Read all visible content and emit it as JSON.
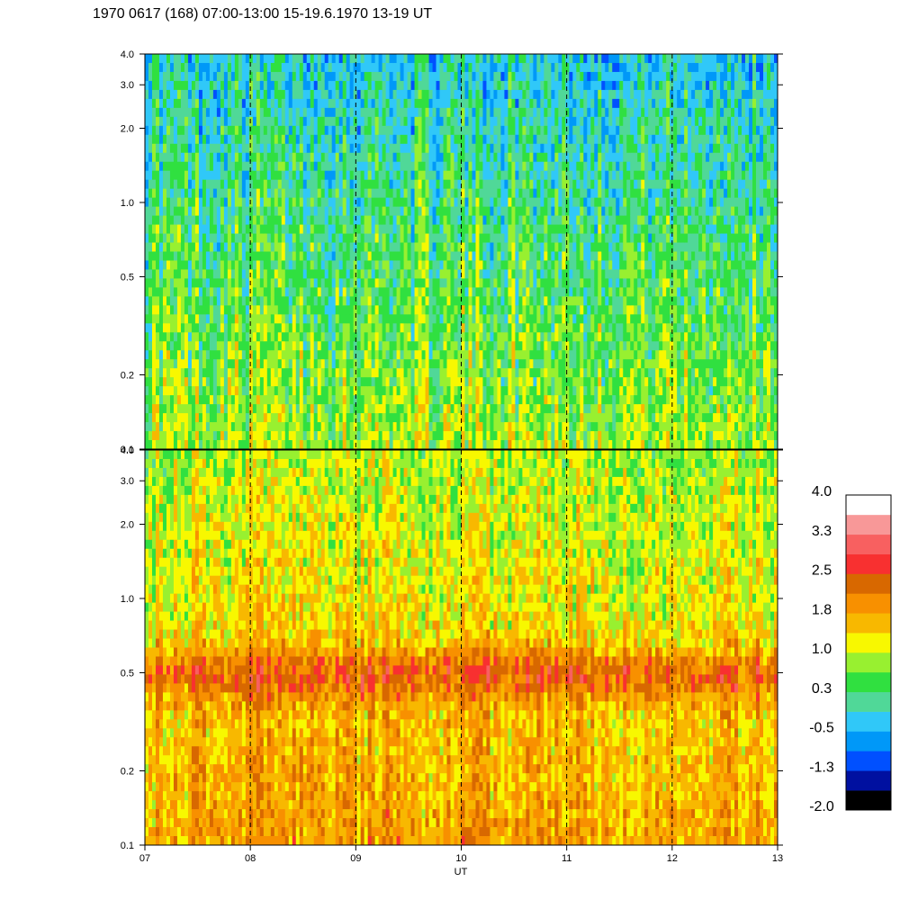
{
  "chart_data": {
    "type": "heatmap",
    "title": "1970 0617 (168) 07:00-13:00 15-19.6.1970  13-19 UT",
    "xlabel": "UT",
    "x_range": [
      7,
      13
    ],
    "x_ticks": [
      7,
      8,
      9,
      10,
      11,
      12,
      13
    ],
    "x_tick_labels": [
      "07",
      "08",
      "09",
      "10",
      "11",
      "12",
      "13"
    ],
    "y_scale": "log",
    "y_range": [
      0.1,
      4.0
    ],
    "y_ticks": [
      0.1,
      0.2,
      0.5,
      1.0,
      2.0,
      3.0,
      4.0
    ],
    "y_tick_labels": [
      "0.1",
      "0.2",
      "0.5",
      "1.0",
      "2.0",
      "3.0",
      "4.0"
    ],
    "grid": "dashed vertical lines at each hour",
    "panels": [
      {
        "name": "upper",
        "dominant_levels": "-0.5 to 1.0"
      },
      {
        "name": "lower",
        "dominant_levels": "1.0 to 2.5"
      }
    ],
    "colorbar": {
      "range": [
        -2.0,
        4.0
      ],
      "tick_labels": [
        "4.0",
        "3.3",
        "2.5",
        "1.8",
        "1.0",
        "0.3",
        "-0.5",
        "-1.3",
        "-2.0"
      ],
      "colors": [
        "#000000",
        "#0010a0",
        "#0050ff",
        "#0098f8",
        "#30c8f8",
        "#50d898",
        "#30e040",
        "#98f030",
        "#f8f800",
        "#f8b800",
        "#f89000",
        "#d86800",
        "#f83030",
        "#f86060",
        "#f89898",
        "#ffffff"
      ]
    }
  }
}
